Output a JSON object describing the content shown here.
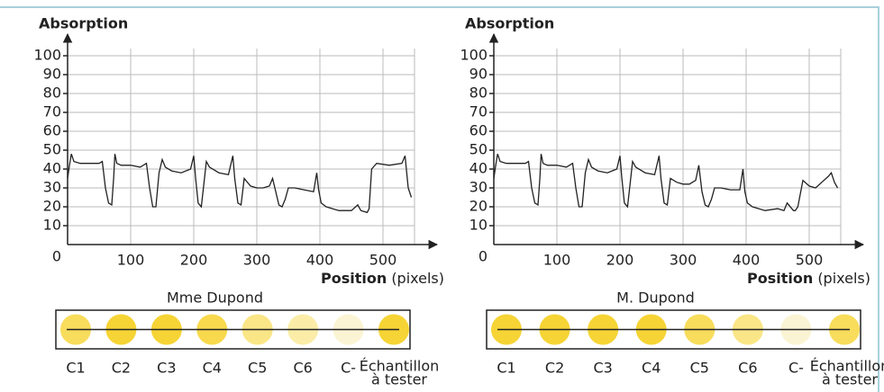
{
  "chart_data": [
    {
      "type": "line",
      "y_label": "Absorption",
      "x_label": "Position",
      "x_unit": "(pixels)",
      "x": [
        0,
        3,
        6,
        10,
        20,
        30,
        40,
        50,
        55,
        60,
        65,
        70,
        73,
        75,
        78,
        85,
        100,
        115,
        125,
        130,
        135,
        140,
        145,
        150,
        155,
        165,
        180,
        195,
        200,
        203,
        207,
        212,
        217,
        220,
        225,
        240,
        255,
        262,
        265,
        270,
        275,
        280,
        290,
        300,
        310,
        320,
        325,
        330,
        335,
        340,
        345,
        350,
        360,
        375,
        390,
        395,
        398,
        402,
        410,
        430,
        450,
        460,
        465,
        475,
        478,
        482,
        490,
        510,
        530,
        535,
        540,
        545
      ],
      "values": [
        35,
        42,
        48,
        44,
        43,
        43,
        43,
        43,
        44,
        30,
        22,
        21,
        35,
        48,
        43,
        42,
        42,
        41,
        43,
        30,
        20,
        20,
        38,
        45,
        41,
        39,
        38,
        40,
        47,
        35,
        22,
        20,
        35,
        44,
        41,
        38,
        37,
        47,
        35,
        22,
        21,
        35,
        31,
        30,
        30,
        31,
        35,
        28,
        21,
        20,
        24,
        30,
        30,
        29,
        28,
        38,
        29,
        22,
        20,
        18,
        18,
        21,
        18,
        17,
        19,
        40,
        43,
        42,
        43,
        47,
        30,
        25
      ],
      "color": "#222222",
      "xlim": [
        0,
        550
      ],
      "ylim": [
        0,
        100
      ],
      "xticks": [
        0,
        100,
        200,
        300,
        400,
        500
      ],
      "yticks": [
        10,
        20,
        30,
        40,
        50,
        60,
        70,
        80,
        90,
        100
      ],
      "grid": true,
      "strip_label": "Mme Dupond",
      "lanes": [
        "C1",
        "C2",
        "C3",
        "C4",
        "C5",
        "C6",
        "C-"
      ],
      "sample_label": [
        "Échantillon",
        "à tester"
      ],
      "spot_colors": [
        "#f7d84a",
        "#f5cf1f",
        "#f5cf1f",
        "#f7d53a",
        "#f9e37a",
        "#fbeb9e",
        "#fbf3cf",
        "#f5cf1f"
      ]
    },
    {
      "type": "line",
      "y_label": "Absorption",
      "x_label": "Position",
      "x_unit": "(pixels)",
      "x": [
        0,
        3,
        6,
        10,
        20,
        30,
        40,
        50,
        55,
        60,
        65,
        70,
        73,
        75,
        78,
        85,
        100,
        115,
        125,
        130,
        135,
        140,
        145,
        150,
        155,
        165,
        180,
        195,
        200,
        203,
        207,
        212,
        217,
        220,
        225,
        240,
        255,
        262,
        265,
        270,
        275,
        280,
        290,
        300,
        310,
        320,
        325,
        330,
        335,
        340,
        345,
        350,
        360,
        375,
        390,
        395,
        398,
        402,
        410,
        430,
        450,
        460,
        465,
        475,
        478,
        482,
        490,
        500,
        510,
        520,
        530,
        535,
        540,
        545
      ],
      "values": [
        35,
        42,
        48,
        44,
        43,
        43,
        43,
        43,
        44,
        30,
        22,
        21,
        35,
        48,
        43,
        42,
        42,
        41,
        43,
        30,
        20,
        20,
        38,
        45,
        41,
        39,
        38,
        40,
        47,
        35,
        22,
        20,
        35,
        44,
        41,
        38,
        37,
        47,
        35,
        22,
        21,
        35,
        33,
        32,
        32,
        34,
        42,
        28,
        21,
        20,
        24,
        30,
        30,
        29,
        29,
        40,
        28,
        22,
        20,
        18,
        19,
        18,
        22,
        18,
        18,
        20,
        34,
        31,
        30,
        33,
        36,
        38,
        33,
        30
      ],
      "color": "#222222",
      "xlim": [
        0,
        550
      ],
      "ylim": [
        0,
        100
      ],
      "xticks": [
        0,
        100,
        200,
        300,
        400,
        500
      ],
      "yticks": [
        10,
        20,
        30,
        40,
        50,
        60,
        70,
        80,
        90,
        100
      ],
      "grid": true,
      "strip_label": "M. Dupond",
      "lanes": [
        "C1",
        "C2",
        "C3",
        "C4",
        "C5",
        "C6",
        "C-"
      ],
      "sample_label": [
        "Échantillon",
        "à tester"
      ],
      "spot_colors": [
        "#f5cf1f",
        "#f5cf1f",
        "#f5cf1f",
        "#f5cf1f",
        "#f7d84a",
        "#f9e37a",
        "#fbf3cf",
        "#f7d84a"
      ]
    }
  ]
}
